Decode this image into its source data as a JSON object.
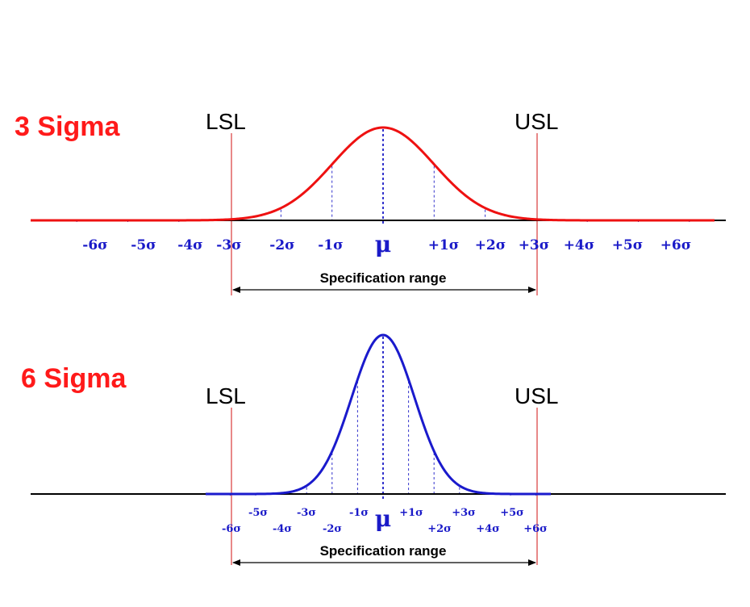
{
  "colors": {
    "title": "#ff1a1a",
    "three_sigma_curve": "#ee1111",
    "six_sigma_curve": "#1a1acc",
    "ticks": "#1a1ac8",
    "limit_line": "#e06060",
    "axis": "#000000"
  },
  "panels": [
    {
      "title": "3 Sigma",
      "lsl_label": "LSL",
      "usl_label": "USL",
      "spec_label": "Specification range",
      "mean_label": "μ",
      "tick_labels": [
        "-6σ",
        "-5σ",
        "-4σ",
        "-3σ",
        "-2σ",
        "-1σ",
        "+1σ",
        "+2σ",
        "+3σ",
        "+4σ",
        "+5σ",
        "+6σ"
      ],
      "spec_limits_sigma": [
        -3,
        3
      ]
    },
    {
      "title": "6 Sigma",
      "lsl_label": "LSL",
      "usl_label": "USL",
      "spec_label": "Specification range",
      "mean_label": "μ",
      "tick_labels": [
        "-6σ",
        "-5σ",
        "-4σ",
        "-3σ",
        "-2σ",
        "-1σ",
        "+1σ",
        "+2σ",
        "+3σ",
        "+4σ",
        "+5σ",
        "+6σ"
      ],
      "spec_limits_sigma": [
        -6,
        6
      ]
    }
  ]
}
